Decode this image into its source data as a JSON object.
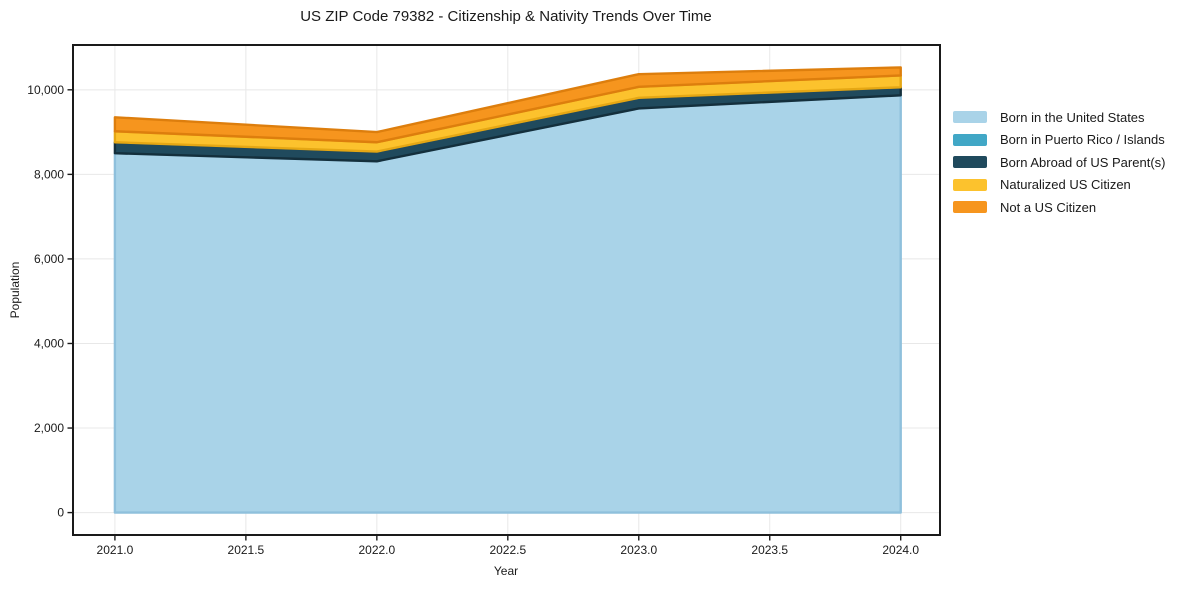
{
  "chart_data": {
    "type": "area",
    "stacked": true,
    "title": "US ZIP Code 79382 - Citizenship & Nativity Trends Over Time",
    "xlabel": "Year",
    "ylabel": "Population",
    "x": [
      2021,
      2022,
      2023,
      2024
    ],
    "series": [
      {
        "name": "Born in the United States",
        "color": "#a9d3e8",
        "edge": "#8fc0dc",
        "values": [
          8500,
          8310,
          9560,
          9870
        ]
      },
      {
        "name": "Born in Puerto Rico / Islands",
        "color": "#41a7c6",
        "edge": "#2f8fae",
        "values": [
          0,
          0,
          0,
          0
        ]
      },
      {
        "name": "Born Abroad of US Parent(s)",
        "color": "#204a5d",
        "edge": "#142f3c",
        "values": [
          260,
          230,
          250,
          190
        ]
      },
      {
        "name": "Naturalized US Citizen",
        "color": "#fcc22d",
        "edge": "#e5a714",
        "values": [
          260,
          220,
          260,
          280
        ]
      },
      {
        "name": "Not a US Citizen",
        "color": "#f6951e",
        "edge": "#dd7e0d",
        "values": [
          330,
          240,
          300,
          190
        ]
      }
    ],
    "totals": [
      9350,
      9000,
      10370,
      10530
    ],
    "xlim": [
      2020.84,
      2024.15
    ],
    "ylim": [
      -530,
      11060
    ],
    "xticks": {
      "values": [
        2021.0,
        2021.5,
        2022.0,
        2022.5,
        2023.0,
        2023.5,
        2024.0
      ],
      "labels": [
        "2021.0",
        "2021.5",
        "2022.0",
        "2022.5",
        "2023.0",
        "2023.5",
        "2024.0"
      ]
    },
    "yticks": {
      "values": [
        0,
        2000,
        4000,
        6000,
        8000,
        10000
      ],
      "labels": [
        "0",
        "2,000",
        "4,000",
        "6,000",
        "8,000",
        "10,000"
      ]
    },
    "grid": true,
    "grid_color": "#e8e8e8",
    "spine_color": "#1a1a1a",
    "legend_position": "right"
  }
}
